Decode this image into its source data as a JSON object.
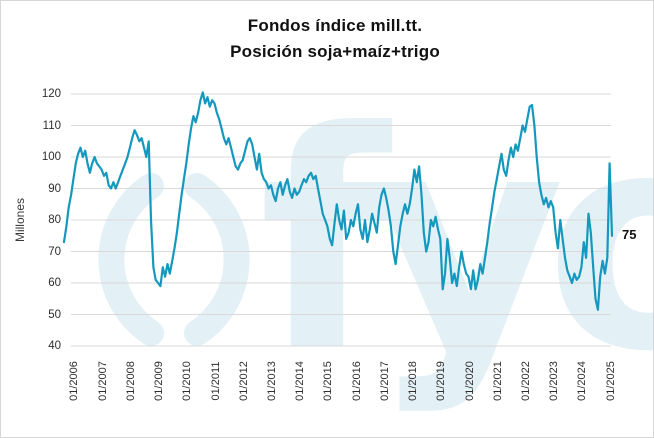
{
  "title": {
    "line1": "Fondos índice mill.tt.",
    "line2": "Posición soja+maíz+trigo"
  },
  "watermark": {
    "text": "fyo",
    "color": "#e3f0f6"
  },
  "chart_data": {
    "type": "line",
    "title": "Fondos índice mill.tt.",
    "subtitle": "Posición soja+maíz+trigo",
    "ylabel": "Millones",
    "xlabel": "",
    "ylim": [
      40,
      120
    ],
    "y_ticks": [
      120,
      110,
      100,
      90,
      80,
      70,
      60,
      50,
      40
    ],
    "x_tick_labels": [
      "01/2006",
      "01/2007",
      "01/2008",
      "01/2009",
      "01/2010",
      "01/2011",
      "01/2012",
      "01/2013",
      "01/2014",
      "01/2015",
      "01/2016",
      "01/2017",
      "01/2018",
      "01/2019",
      "01/2020",
      "01/2021",
      "01/2022",
      "01/2023",
      "01/2024",
      "01/2025"
    ],
    "series_start": "09/2005",
    "frequency": "monthly",
    "grid": "horizontal",
    "legend_position": "none",
    "line_color": "#1598be",
    "grid_color": "#d9d9d9",
    "axis_text_color": "#2e2e2e",
    "end_label": "75",
    "series": [
      {
        "name": "Fondos índice posición soja+maíz+trigo (millones tt.)",
        "values": [
          73,
          78,
          84,
          88,
          93,
          98,
          101,
          103,
          100,
          102,
          98,
          95,
          98,
          100,
          98,
          97,
          96,
          94,
          95,
          91,
          90,
          92,
          90,
          92,
          94,
          96,
          98,
          100,
          103,
          106,
          108.5,
          107,
          105,
          106,
          103,
          100,
          105,
          80,
          65,
          61,
          60,
          59,
          65,
          62,
          66,
          63,
          67,
          71,
          76,
          82,
          88,
          93,
          98,
          104,
          109,
          113,
          111,
          114,
          118,
          120.5,
          117,
          119,
          116,
          118,
          117,
          114,
          112,
          109,
          106,
          104,
          106,
          103,
          100,
          97,
          96,
          98,
          99,
          102,
          105,
          106,
          104,
          100,
          96,
          101,
          95,
          93,
          92,
          90,
          91,
          88,
          86,
          90,
          92,
          88,
          91,
          93,
          89,
          87,
          90,
          88,
          89,
          91,
          93,
          92,
          94,
          95,
          93,
          94,
          90,
          86,
          82,
          80,
          78,
          74,
          72,
          79,
          85,
          80,
          77,
          83,
          74,
          76,
          80,
          78,
          82,
          85,
          77,
          74,
          80,
          73,
          77,
          82,
          79,
          76,
          84,
          88,
          90,
          87,
          83,
          78,
          70,
          66,
          72,
          78,
          82,
          85,
          82,
          85,
          90,
          96,
          92,
          97,
          88,
          76,
          70,
          73,
          80,
          78,
          81,
          77,
          74,
          58,
          63,
          74,
          68,
          60,
          63,
          59,
          65,
          70,
          66,
          63,
          62,
          58,
          64,
          58,
          61,
          66,
          63,
          68,
          73,
          79,
          84,
          89,
          93,
          97,
          101,
          96,
          94,
          99,
          103,
          100,
          104,
          102,
          106,
          110,
          108,
          112,
          116,
          116.5,
          110,
          100,
          92,
          88,
          85,
          87,
          84,
          86,
          84,
          76,
          71,
          80,
          74,
          68,
          64,
          62,
          60,
          63,
          61,
          62,
          65,
          73,
          68,
          82,
          76,
          65,
          55,
          51.5,
          62,
          67,
          63,
          68,
          98,
          75
        ]
      }
    ]
  }
}
